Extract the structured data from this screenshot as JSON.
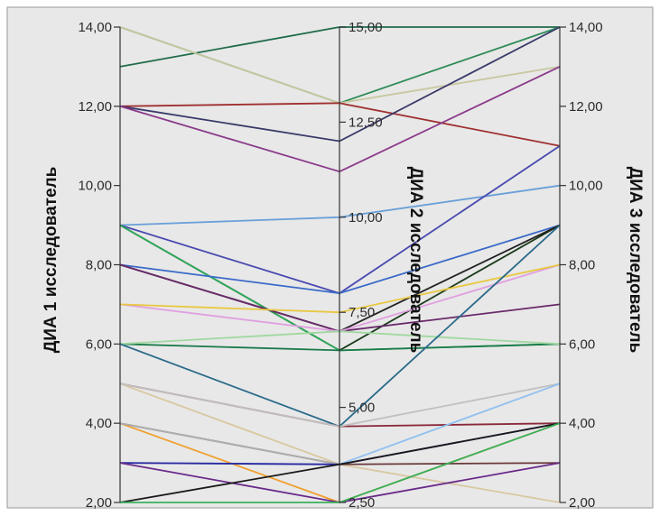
{
  "chart_data": {
    "type": "parallel-coordinates",
    "axes": [
      {
        "name": "ДИА 1 исследователь",
        "range": [
          2,
          14
        ],
        "ticks": [
          "2,00",
          "4,00",
          "6,00",
          "8,00",
          "10,00",
          "12,00",
          "14,00"
        ]
      },
      {
        "name": "ДИА 2 исследователь",
        "range": [
          2.5,
          15
        ],
        "ticks": [
          "2,50",
          "5,00",
          "7,50",
          "10,00",
          "12,50",
          "15,00"
        ]
      },
      {
        "name": "ДИА 3 исследователь",
        "range": [
          2,
          14
        ],
        "ticks": [
          "2,00",
          "4,00",
          "6,00",
          "8,00",
          "10,00",
          "12,00",
          "14,00"
        ]
      }
    ],
    "grid": false,
    "lines": [
      {
        "values": [
          14,
          13,
          14
        ],
        "color": "#2e8b57"
      },
      {
        "values": [
          13,
          15,
          14
        ],
        "color": "#1f6b4a"
      },
      {
        "values": [
          14,
          13,
          13
        ],
        "color": "#c8c8a0"
      },
      {
        "values": [
          12,
          13,
          11
        ],
        "color": "#a03030"
      },
      {
        "values": [
          12,
          12,
          14
        ],
        "color": "#3a3a6a"
      },
      {
        "values": [
          12,
          11.2,
          13
        ],
        "color": "#8a3a8a"
      },
      {
        "values": [
          9,
          10,
          10
        ],
        "color": "#6aa0d8"
      },
      {
        "values": [
          9,
          8,
          11
        ],
        "color": "#4a4ab0"
      },
      {
        "values": [
          9,
          6.5,
          9
        ],
        "color": "#1a3a1a"
      },
      {
        "values": [
          9,
          6.5,
          6
        ],
        "color": "#2eaa5a"
      },
      {
        "values": [
          8,
          8,
          9
        ],
        "color": "#3a6ac8"
      },
      {
        "values": [
          8,
          7,
          9
        ],
        "color": "#222222"
      },
      {
        "values": [
          8,
          7,
          7
        ],
        "color": "#6a2a6a"
      },
      {
        "values": [
          7,
          7,
          8
        ],
        "color": "#e0a0e0"
      },
      {
        "values": [
          7,
          7.5,
          8
        ],
        "color": "#e8c840"
      },
      {
        "values": [
          6,
          6.5,
          6
        ],
        "color": "#1a7a4a"
      },
      {
        "values": [
          6,
          7,
          6
        ],
        "color": "#a0d8a0"
      },
      {
        "values": [
          6,
          4.5,
          9
        ],
        "color": "#2a6a8a"
      },
      {
        "values": [
          5,
          4.5,
          4
        ],
        "color": "#8a2a3a"
      },
      {
        "values": [
          5,
          3.5,
          2
        ],
        "color": "#d8c8a0"
      },
      {
        "values": [
          5,
          4.5,
          5
        ],
        "color": "#c0c0c0"
      },
      {
        "values": [
          4,
          2.5,
          4
        ],
        "color": "#f0a030"
      },
      {
        "values": [
          4,
          3.5,
          3
        ],
        "color": "#6a3a3a"
      },
      {
        "values": [
          4,
          3.5,
          4
        ],
        "color": "#b0b0b0"
      },
      {
        "values": [
          3,
          3.5,
          5
        ],
        "color": "#90c0f0"
      },
      {
        "values": [
          3,
          3.5,
          4
        ],
        "color": "#2a2aa0"
      },
      {
        "values": [
          3,
          2.5,
          3
        ],
        "color": "#6a2a8a"
      },
      {
        "values": [
          2,
          3.5,
          4
        ],
        "color": "#1a1a1a"
      },
      {
        "values": [
          2,
          2.5,
          4
        ],
        "color": "#3ab05a"
      }
    ]
  }
}
